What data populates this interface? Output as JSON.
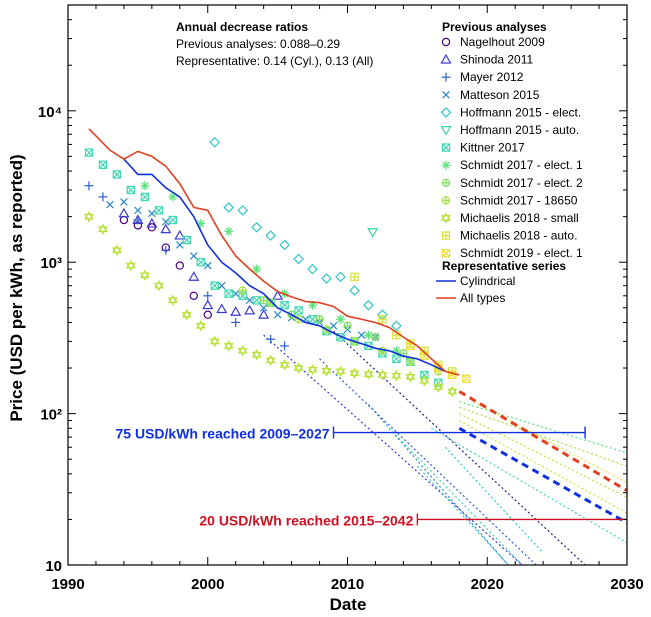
{
  "chart_data": {
    "type": "scatter",
    "title": "",
    "xlabel": "Date",
    "ylabel": "Price (USD per kWh, as reported)",
    "xlim": [
      1990,
      2030
    ],
    "ylim": [
      10,
      50000
    ],
    "yscale": "log",
    "x_ticks": [
      1990,
      2000,
      2010,
      2020,
      2030
    ],
    "x_tick_labels": [
      "1990",
      "2000",
      "2010",
      "2020",
      "2030"
    ],
    "y_ticks": [
      10,
      100,
      1000,
      10000
    ],
    "y_tick_labels": [
      "10",
      "10²",
      "10³",
      "10⁴"
    ],
    "annotation": {
      "heading": "Annual decrease ratios",
      "line1": "Previous analyses: 0.088–0.29",
      "line2": "Representative: 0.14 (Cyl.), 0.13 (All)"
    },
    "legend_previous": {
      "heading": "Previous analyses",
      "entries": [
        {
          "name": "Nagelhout 2009",
          "color": "#4b0082",
          "marker": "circle"
        },
        {
          "name": "Shinoda 2011",
          "color": "#3a3ad6",
          "marker": "triangle-up"
        },
        {
          "name": "Mayer 2012",
          "color": "#2e5fd8",
          "marker": "plus"
        },
        {
          "name": "Matteson 2015",
          "color": "#2e86c9",
          "marker": "x"
        },
        {
          "name": "Hoffmann 2015 - elect.",
          "color": "#2fc6c6",
          "marker": "diamond"
        },
        {
          "name": "Hoffmann 2015 - auto.",
          "color": "#38d6a0",
          "marker": "triangle-down"
        },
        {
          "name": "Kittner 2017",
          "color": "#3fd8b2",
          "marker": "square-x"
        },
        {
          "name": "Schmidt 2017 - elect. 1",
          "color": "#5ee07a",
          "marker": "asterisk"
        },
        {
          "name": "Schmidt 2017 - elect. 2",
          "color": "#7ee05a",
          "marker": "circle-plus"
        },
        {
          "name": "Schmidt 2017 - 18650",
          "color": "#a6e04a",
          "marker": "circle-plus"
        },
        {
          "name": "Michaelis 2018 - small",
          "color": "#b8e23c",
          "marker": "star"
        },
        {
          "name": "Michaelis 2018 - auto.",
          "color": "#d4e23a",
          "marker": "square-plus"
        },
        {
          "name": "Schmidt 2019 - elect. 1",
          "color": "#f0de30",
          "marker": "square-x"
        }
      ]
    },
    "legend_representative": {
      "heading": "Representative series",
      "entries": [
        {
          "name": "Cylindrical",
          "color": "#1030e0"
        },
        {
          "name": "All types",
          "color": "#e04020"
        }
      ]
    },
    "series": [
      {
        "name": "Nagelhout 2009",
        "x": [
          1994,
          1995,
          1996,
          1997,
          1998,
          1999,
          2000
        ],
        "y": [
          1900,
          1750,
          1700,
          1250,
          950,
          600,
          450
        ]
      },
      {
        "name": "Shinoda 2011",
        "x": [
          1994,
          1995,
          1996,
          1997,
          1998,
          1999,
          2000,
          2001,
          2002,
          2003,
          2004,
          2005
        ],
        "y": [
          2100,
          1900,
          1800,
          1650,
          1500,
          800,
          520,
          490,
          470,
          480,
          450,
          600
        ]
      },
      {
        "name": "Mayer 2012",
        "x": [
          1991.5,
          1992.5,
          1995,
          1997,
          2000,
          2002,
          2004.5,
          2005.5
        ],
        "y": [
          3200,
          2700,
          1900,
          1200,
          600,
          400,
          310,
          280
        ]
      },
      {
        "name": "Matteson 2015",
        "x": [
          1993,
          1994,
          1995,
          1996,
          1997,
          1998,
          1999,
          2000,
          2001,
          2002,
          2003,
          2004,
          2005,
          2006,
          2007,
          2008,
          2009,
          2010,
          2011,
          2012
        ],
        "y": [
          2400,
          2500,
          2200,
          2100,
          1850,
          1300,
          1100,
          950,
          700,
          620,
          560,
          500,
          450,
          430,
          420,
          400,
          380,
          360,
          330,
          320
        ]
      },
      {
        "name": "Hoffmann 2015 - elect.",
        "x": [
          2000.5,
          2001.5,
          2002.5,
          2003.5,
          2004.5,
          2005.5,
          2006.5,
          2007.5,
          2008.5,
          2009.5,
          2010.5,
          2011.5,
          2012.5,
          2013.5
        ],
        "y": [
          6200,
          2300,
          2200,
          1700,
          1500,
          1300,
          1050,
          900,
          780,
          800,
          650,
          520,
          450,
          380
        ]
      },
      {
        "name": "Hoffmann 2015 - auto.",
        "x": [
          2011.8
        ],
        "y": [
          1580
        ]
      },
      {
        "name": "Kittner 2017",
        "x": [
          1991.5,
          1992.5,
          1993.5,
          1994.5,
          1995.5,
          1996.5,
          1997.5,
          1998.5,
          1999.5,
          2000.5,
          2001.5,
          2002.5,
          2003.5,
          2004.5,
          2005.5,
          2006.5,
          2007.5,
          2008.5,
          2009.5,
          2010.5,
          2011.5,
          2012.5,
          2013.5,
          2014.5,
          2015.5,
          2016.5
        ],
        "y": [
          5300,
          4400,
          3800,
          3000,
          2700,
          2200,
          1900,
          1400,
          1000,
          700,
          620,
          600,
          560,
          540,
          520,
          480,
          420,
          350,
          320,
          300,
          280,
          250,
          230,
          220,
          180,
          160
        ]
      },
      {
        "name": "Schmidt 2017 - elect. 1",
        "x": [
          1995.5,
          1997.5,
          1999.5,
          2001.5,
          2003.5,
          2005.5,
          2007.5,
          2009.5,
          2011.5,
          2013.5
        ],
        "y": [
          3200,
          2700,
          1800,
          1600,
          900,
          620,
          520,
          420,
          330,
          260
        ]
      },
      {
        "name": "Schmidt 2017 - elect. 2",
        "x": [
          2004,
          2006,
          2008,
          2010,
          2012,
          2014
        ],
        "y": [
          560,
          450,
          420,
          380,
          320,
          250
        ]
      },
      {
        "name": "Schmidt 2017 - 18650",
        "x": [
          2002.5,
          2004.5,
          2006.5,
          2008.5,
          2010.5,
          2012.5,
          2014.5,
          2016.5
        ],
        "y": [
          650,
          540,
          420,
          360,
          300,
          260,
          220,
          190
        ]
      },
      {
        "name": "Michaelis 2018 - small",
        "x": [
          1991.5,
          1992.5,
          1993.5,
          1994.5,
          1995.5,
          1996.5,
          1997.5,
          1998.5,
          1999.5,
          2000.5,
          2001.5,
          2002.5,
          2003.5,
          2004.5,
          2005.5,
          2006.5,
          2007.5,
          2008.5,
          2009.5,
          2010.5,
          2011.5,
          2012.5,
          2013.5,
          2014.5,
          2015.5,
          2016.5,
          2017.5
        ],
        "y": [
          2000,
          1650,
          1200,
          950,
          820,
          700,
          560,
          450,
          380,
          300,
          280,
          260,
          245,
          225,
          210,
          200,
          195,
          192,
          190,
          185,
          182,
          180,
          178,
          175,
          165,
          150,
          140
        ]
      },
      {
        "name": "Michaelis 2018 - auto.",
        "x": [
          2010.5,
          2012.5,
          2013.5,
          2014.5,
          2015.5,
          2016.5,
          2017.5
        ],
        "y": [
          800,
          420,
          330,
          290,
          260,
          210,
          190
        ]
      },
      {
        "name": "Schmidt 2019 - elect. 1",
        "x": [
          2014.5,
          2015.5,
          2016.5,
          2017.5,
          2018.5
        ],
        "y": [
          280,
          240,
          200,
          180,
          170
        ]
      },
      {
        "name": "Cylindrical",
        "type": "line",
        "x": [
          1994,
          1995,
          1996,
          1997,
          1998,
          1999,
          2000,
          2001,
          2002,
          2003,
          2004,
          2005,
          2006,
          2007,
          2008,
          2009,
          2010,
          2011,
          2012,
          2013,
          2014,
          2015,
          2016,
          2017
        ],
        "y": [
          4800,
          3800,
          3800,
          3100,
          2700,
          2000,
          1300,
          1000,
          850,
          700,
          620,
          500,
          450,
          400,
          380,
          340,
          310,
          290,
          270,
          260,
          240,
          230,
          210,
          190
        ]
      },
      {
        "name": "All types",
        "type": "line",
        "x": [
          1991.5,
          1993,
          1994,
          1995,
          1996,
          1997,
          1998,
          1999,
          2000,
          2001,
          2002,
          2003,
          2004,
          2005,
          2006,
          2007,
          2008,
          2009,
          2010,
          2011,
          2012,
          2013,
          2014,
          2015,
          2016,
          2017,
          2018
        ],
        "y": [
          7600,
          5500,
          4800,
          5400,
          5000,
          4300,
          3300,
          2300,
          2200,
          1500,
          1100,
          900,
          750,
          640,
          590,
          550,
          540,
          510,
          440,
          420,
          400,
          370,
          320,
          280,
          230,
          190,
          180
        ]
      },
      {
        "name": "Cylindrical projection",
        "type": "dashed",
        "x": [
          2018,
          2030
        ],
        "y": [
          80,
          19
        ]
      },
      {
        "name": "All types projection",
        "type": "dashed",
        "x": [
          2018,
          2030
        ],
        "y": [
          140,
          31
        ]
      }
    ],
    "prev_projections": [
      {
        "color": "#2a1e86",
        "x": [
          2009,
          2027
        ],
        "y": [
          350,
          10
        ]
      },
      {
        "color": "#3a3ad6",
        "x": [
          2004,
          2022.5
        ],
        "y": [
          330,
          10
        ]
      },
      {
        "color": "#2e5fd8",
        "x": [
          2008,
          2023.5
        ],
        "y": [
          230,
          10
        ]
      },
      {
        "color": "#2e86c9",
        "x": [
          2011.5,
          2021.5
        ],
        "y": [
          115,
          10
        ]
      },
      {
        "color": "#2fc6c6",
        "x": [
          2015,
          2021.5
        ],
        "y": [
          45,
          10
        ]
      },
      {
        "color": "#38d6b2",
        "x": [
          2013,
          2022.5
        ],
        "y": [
          80,
          10
        ]
      },
      {
        "color": "#3fd8b2",
        "x": [
          2016,
          2030
        ],
        "y": [
          80,
          14
        ]
      },
      {
        "color": "#5ee07a",
        "x": [
          2018,
          2030
        ],
        "y": [
          120,
          55
        ]
      },
      {
        "color": "#a6e04a",
        "x": [
          2018,
          2030
        ],
        "y": [
          110,
          45
        ]
      },
      {
        "color": "#b8e23c",
        "x": [
          2018,
          2030
        ],
        "y": [
          100,
          28
        ]
      },
      {
        "color": "#d4e23a",
        "x": [
          2018,
          2030
        ],
        "y": [
          90,
          22
        ]
      },
      {
        "color": "#f0de30",
        "x": [
          2019,
          2030
        ],
        "y": [
          120,
          35
        ]
      },
      {
        "color": "#2fc6c6",
        "x": [
          2017,
          2024
        ],
        "y": [
          60,
          12
        ]
      }
    ],
    "ranges": [
      {
        "label": "75 USD/kWh reached 2009–2027",
        "from": 2009,
        "to": 2027,
        "y": 75,
        "color": "#1030e0"
      },
      {
        "label": "20 USD/kWh reached 2015–2042",
        "from": 2015,
        "to": 2042,
        "y": 20,
        "color": "#d01020"
      }
    ]
  }
}
